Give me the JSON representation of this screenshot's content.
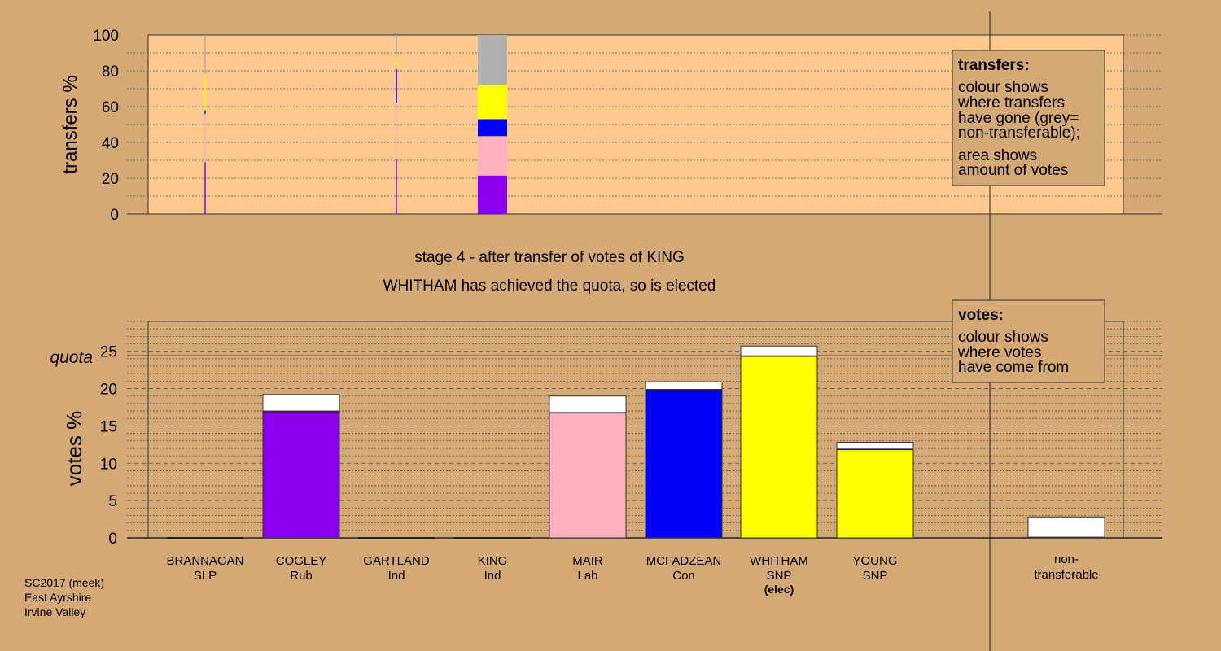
{
  "colors": {
    "background": "#d4a976",
    "plot_background": "#ffc88c",
    "Rub": "#8b00ee",
    "Lab": "#ffb0c0",
    "Con": "#0000ff",
    "SNP": "#ffff00",
    "non_transferable": "#b0b0b0",
    "transferred_in": "#ffffff"
  },
  "titles": {
    "stage": "stage 4 - after transfer of votes of KING",
    "status": "WHITHAM has achieved the quota, so is elected"
  },
  "footer": {
    "lines": [
      "SC2017 (meek)",
      "East Ayrshire",
      "Irvine Valley"
    ]
  },
  "legends": {
    "transfers": {
      "heading": "transfers:",
      "lines": [
        "colour shows",
        "where transfers",
        "have gone (grey=",
        "non-transferable);",
        "area shows",
        "amount of votes"
      ]
    },
    "votes": {
      "heading": "votes:",
      "lines": [
        "colour shows",
        "where votes",
        "have come from"
      ]
    }
  },
  "chart_data": [
    {
      "type": "bar",
      "ylabel": "transfers %",
      "ylim": [
        0,
        100
      ],
      "yticks": [
        0,
        20,
        40,
        60,
        80,
        100
      ],
      "grid": true,
      "legend_position": "top-right",
      "columns": [
        {
          "x": "BRANNAGAN",
          "width": "thin",
          "segments": [
            {
              "to": "Rub",
              "value": 29
            },
            {
              "to": "Lab",
              "value": 27
            },
            {
              "to": "Con",
              "value": 2
            },
            {
              "to": "SNP",
              "value": 20
            },
            {
              "to": "non-transferable",
              "value": 22
            }
          ]
        },
        {
          "x": "GARTLAND",
          "width": "thin",
          "segments": [
            {
              "to": "Rub",
              "value": 31
            },
            {
              "to": "Lab",
              "value": 31
            },
            {
              "to": "Con",
              "value": 19
            },
            {
              "to": "SNP",
              "value": 7
            },
            {
              "to": "non-transferable",
              "value": 12
            }
          ]
        },
        {
          "x": "KING",
          "width": "full",
          "segments": [
            {
              "to": "Rub",
              "value": 21.5
            },
            {
              "to": "Lab",
              "value": 22
            },
            {
              "to": "Con",
              "value": 9.5
            },
            {
              "to": "SNP",
              "value": 19
            },
            {
              "to": "non-transferable",
              "value": 28
            }
          ]
        }
      ]
    },
    {
      "type": "bar",
      "ylabel": "votes %",
      "ylim": [
        0,
        29
      ],
      "yticks": [
        0,
        5,
        10,
        15,
        20,
        25
      ],
      "quota": {
        "label": "quota",
        "value": 24.4
      },
      "grid": true,
      "legend_position": "top-right",
      "categories": [
        {
          "name": "BRANNAGAN",
          "party": "SLP",
          "base": 0,
          "transferred": 0,
          "color_key": "SLP"
        },
        {
          "name": "COGLEY",
          "party": "Rub",
          "base": 17,
          "transferred": 2.2,
          "color_key": "Rub"
        },
        {
          "name": "GARTLAND",
          "party": "Ind",
          "base": 0,
          "transferred": 0,
          "color_key": "Ind"
        },
        {
          "name": "KING",
          "party": "Ind",
          "base": 0,
          "transferred": 0,
          "color_key": "Ind"
        },
        {
          "name": "MAIR",
          "party": "Lab",
          "base": 16.8,
          "transferred": 2.2,
          "color_key": "Lab"
        },
        {
          "name": "MCFADZEAN",
          "party": "Con",
          "base": 19.9,
          "transferred": 1.0,
          "color_key": "Con"
        },
        {
          "name": "WHITHAM",
          "party": "SNP",
          "base": 24.4,
          "transferred": 1.3,
          "color_key": "SNP",
          "note": "(elec)"
        },
        {
          "name": "YOUNG",
          "party": "SNP",
          "base": 11.9,
          "transferred": 0.9,
          "color_key": "SNP"
        }
      ],
      "non_transferable": {
        "label_lines": [
          "non-",
          "transferable"
        ],
        "base": 0.1,
        "transferred": 2.7
      }
    }
  ]
}
